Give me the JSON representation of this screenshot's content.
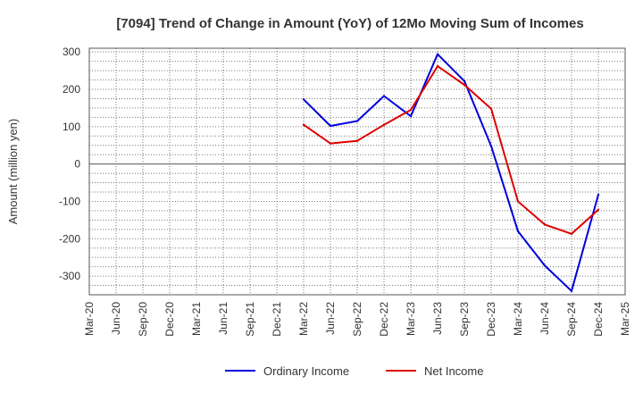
{
  "chart_data": {
    "type": "line",
    "title": "[7094]  Trend of Change in Amount (YoY) of 12Mo Moving Sum of Incomes",
    "xlabel": "",
    "ylabel": "Amount (million yen)",
    "ylim": [
      -350,
      310
    ],
    "yticks": [
      300,
      200,
      100,
      0,
      -100,
      -200,
      -300
    ],
    "categories": [
      "Mar-20",
      "Jun-20",
      "Sep-20",
      "Dec-20",
      "Mar-21",
      "Jun-21",
      "Sep-21",
      "Dec-21",
      "Mar-22",
      "Jun-22",
      "Sep-22",
      "Dec-22",
      "Mar-23",
      "Jun-23",
      "Sep-23",
      "Dec-23",
      "Mar-24",
      "Jun-24",
      "Sep-24",
      "Dec-24",
      "Mar-25"
    ],
    "grid": true,
    "legend_position": "bottom",
    "series": [
      {
        "name": "Ordinary Income",
        "color": "#0000dd",
        "values": [
          null,
          null,
          null,
          null,
          null,
          null,
          null,
          null,
          173,
          102,
          115,
          182,
          128,
          294,
          222,
          48,
          -180,
          -272,
          -340,
          -82,
          null
        ]
      },
      {
        "name": "Net Income",
        "color": "#dd0000",
        "values": [
          null,
          null,
          null,
          null,
          null,
          null,
          null,
          null,
          105,
          55,
          62,
          105,
          145,
          262,
          212,
          148,
          -100,
          -162,
          -187,
          -122,
          null
        ]
      }
    ]
  }
}
